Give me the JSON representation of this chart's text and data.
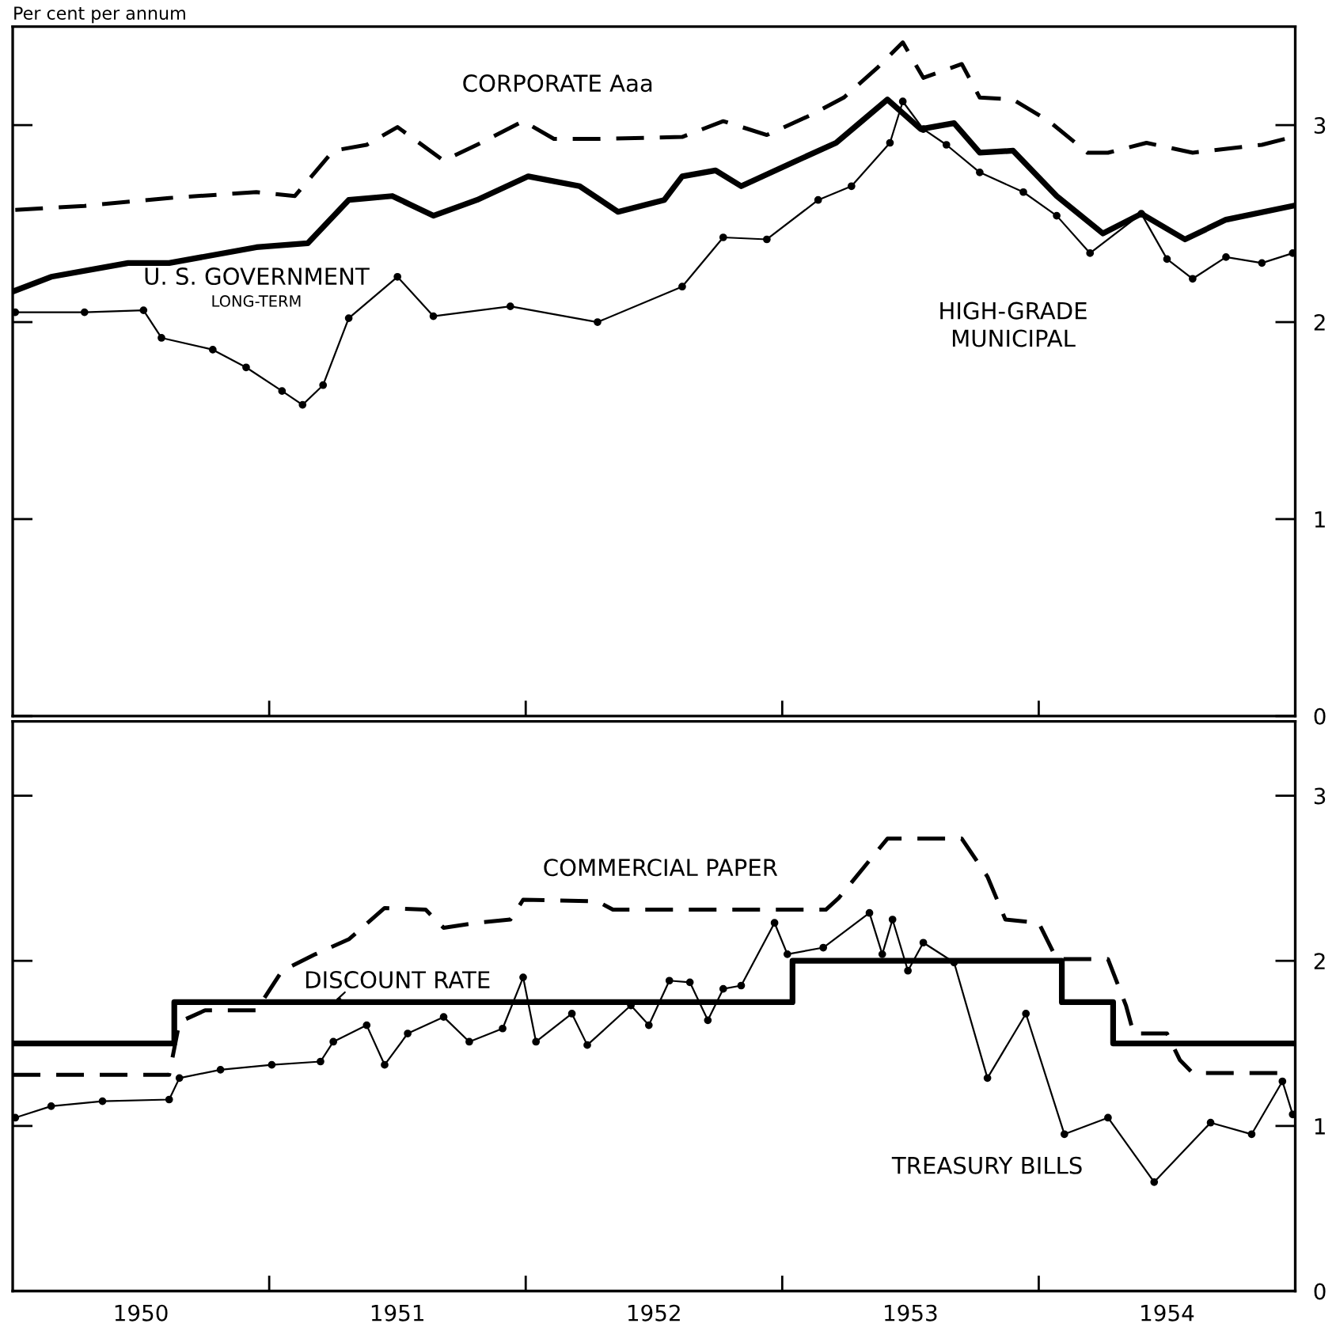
{
  "chart_data": [
    {
      "type": "line",
      "ylabel": "Per cent per annum",
      "xlim": [
        1950,
        1955
      ],
      "ylim": [
        0,
        3.5
      ],
      "yticks": [
        0,
        1,
        2,
        3
      ],
      "tick_labels": "y",
      "xticks": [
        {
          "value": 1951,
          "label": null
        },
        {
          "value": 1952,
          "label": null
        },
        {
          "value": 1953,
          "label": null
        },
        {
          "value": 1954,
          "label": null
        }
      ],
      "series": [
        {
          "name": "CORPORATE Aaa",
          "color": "#000000",
          "line_style": "dashed",
          "marker": "none",
          "x": [
            1950.01,
            1950.28,
            1950.61,
            1950.95,
            1951.1,
            1951.25,
            1951.38,
            1951.5,
            1951.68,
            1951.81,
            1951.99,
            1952.11,
            1952.28,
            1952.61,
            1952.77,
            1952.94,
            1953.11,
            1953.24,
            1953.37,
            1953.47,
            1953.55,
            1953.7,
            1953.77,
            1953.9,
            1954.04,
            1954.19,
            1954.27,
            1954.42,
            1954.6,
            1954.87,
            1954.99
          ],
          "values": [
            2.57,
            2.59,
            2.63,
            2.66,
            2.64,
            2.87,
            2.9,
            2.99,
            2.82,
            2.9,
            3.02,
            2.93,
            2.93,
            2.94,
            3.02,
            2.95,
            3.05,
            3.14,
            3.29,
            3.42,
            3.24,
            3.31,
            3.14,
            3.13,
            3.02,
            2.86,
            2.86,
            2.91,
            2.86,
            2.9,
            2.94
          ]
        },
        {
          "name": "U. S. GOVERNMENT\nLONG-TERM",
          "color": "#000000",
          "line_style": "solid",
          "marker": "none",
          "x": [
            1950.01,
            1950.15,
            1950.45,
            1950.61,
            1950.95,
            1951.15,
            1951.31,
            1951.48,
            1951.64,
            1951.81,
            1952.01,
            1952.21,
            1952.36,
            1952.54,
            1952.61,
            1952.74,
            1952.84,
            1953.04,
            1953.21,
            1953.31,
            1953.41,
            1953.54,
            1953.67,
            1953.77,
            1953.9,
            1954.07,
            1954.25,
            1954.4,
            1954.57,
            1954.73,
            1954.99
          ],
          "values": [
            2.16,
            2.23,
            2.3,
            2.3,
            2.38,
            2.4,
            2.62,
            2.64,
            2.54,
            2.62,
            2.74,
            2.69,
            2.56,
            2.62,
            2.74,
            2.77,
            2.69,
            2.81,
            2.91,
            3.02,
            3.13,
            2.98,
            3.01,
            2.86,
            2.87,
            2.64,
            2.45,
            2.55,
            2.42,
            2.52,
            2.59
          ]
        },
        {
          "name": "HIGH-GRADE\nMUNICIPAL",
          "color": "#000000",
          "line_style": "solid",
          "marker": "circle",
          "x": [
            1950.01,
            1950.28,
            1950.51,
            1950.58,
            1950.78,
            1950.91,
            1951.05,
            1951.13,
            1951.21,
            1951.31,
            1951.5,
            1951.64,
            1951.94,
            1952.28,
            1952.61,
            1952.77,
            1952.94,
            1953.14,
            1953.27,
            1953.42,
            1953.47,
            1953.55,
            1953.64,
            1953.77,
            1953.94,
            1954.07,
            1954.2,
            1954.4,
            1954.5,
            1954.6,
            1954.73,
            1954.87,
            1954.99
          ],
          "values": [
            2.05,
            2.05,
            2.06,
            1.92,
            1.86,
            1.77,
            1.65,
            1.58,
            1.68,
            2.02,
            2.23,
            2.03,
            2.08,
            2.0,
            2.18,
            2.43,
            2.42,
            2.62,
            2.69,
            2.91,
            3.12,
            2.98,
            2.9,
            2.76,
            2.66,
            2.54,
            2.35,
            2.55,
            2.32,
            2.22,
            2.33,
            2.3,
            2.35
          ]
        }
      ]
    },
    {
      "type": "line",
      "xlim": [
        1950,
        1955
      ],
      "ylim": [
        0,
        3.45
      ],
      "yticks": [
        0,
        1,
        2,
        3
      ],
      "xticks": [
        {
          "value": 1950.5,
          "label": "1950"
        },
        {
          "value": 1951,
          "label": null
        },
        {
          "value": 1951.5,
          "label": "1951"
        },
        {
          "value": 1952,
          "label": null
        },
        {
          "value": 1952.5,
          "label": "1952"
        },
        {
          "value": 1953,
          "label": null
        },
        {
          "value": 1953.5,
          "label": "1953"
        },
        {
          "value": 1954,
          "label": null
        },
        {
          "value": 1954.5,
          "label": "1954"
        }
      ],
      "series": [
        {
          "name": "COMMERCIAL PAPER",
          "color": "#000000",
          "line_style": "dashed",
          "marker": "none",
          "x": [
            1950.0,
            1950.61,
            1950.65,
            1950.75,
            1950.95,
            1951.05,
            1951.18,
            1951.31,
            1951.45,
            1951.61,
            1951.68,
            1951.81,
            1951.94,
            1951.99,
            1952.28,
            1952.34,
            1953.17,
            1953.22,
            1953.41,
            1953.7,
            1953.8,
            1953.87,
            1954.0,
            1954.07,
            1954.27,
            1954.34,
            1954.37,
            1954.5,
            1954.55,
            1954.6,
            1954.99
          ],
          "values": [
            1.31,
            1.31,
            1.63,
            1.7,
            1.7,
            1.94,
            2.04,
            2.13,
            2.32,
            2.31,
            2.2,
            2.23,
            2.25,
            2.37,
            2.36,
            2.31,
            2.31,
            2.38,
            2.74,
            2.74,
            2.51,
            2.25,
            2.23,
            2.01,
            2.01,
            1.73,
            1.56,
            1.56,
            1.4,
            1.32,
            1.32
          ]
        },
        {
          "name": "DISCOUNT RATE",
          "type": "step",
          "color": "#000000",
          "line_style": "solid",
          "marker": "none",
          "x": [
            1950.0,
            1950.63,
            1953.04,
            1954.09,
            1954.29,
            1955.0
          ],
          "values": [
            1.5,
            1.75,
            2.0,
            1.75,
            1.5,
            1.5
          ]
        },
        {
          "name": "TREASURY BILLS",
          "color": "#000000",
          "line_style": "solid",
          "marker": "circle",
          "x": [
            1950.01,
            1950.15,
            1950.35,
            1950.61,
            1950.65,
            1950.81,
            1951.01,
            1951.2,
            1951.25,
            1951.38,
            1951.45,
            1951.54,
            1951.68,
            1951.78,
            1951.91,
            1951.99,
            1952.04,
            1952.18,
            1952.24,
            1952.41,
            1952.48,
            1952.56,
            1952.64,
            1952.71,
            1952.77,
            1952.84,
            1952.97,
            1953.02,
            1953.16,
            1953.34,
            1953.39,
            1953.43,
            1953.49,
            1953.55,
            1953.67,
            1953.8,
            1953.95,
            1954.1,
            1954.27,
            1954.45,
            1954.67,
            1954.83,
            1954.95,
            1954.99
          ],
          "values": [
            1.05,
            1.12,
            1.15,
            1.16,
            1.29,
            1.34,
            1.37,
            1.39,
            1.51,
            1.61,
            1.37,
            1.56,
            1.66,
            1.51,
            1.59,
            1.9,
            1.51,
            1.68,
            1.49,
            1.73,
            1.61,
            1.88,
            1.87,
            1.64,
            1.83,
            1.85,
            2.23,
            2.04,
            2.08,
            2.29,
            2.04,
            2.25,
            1.94,
            2.11,
            1.99,
            1.29,
            1.68,
            0.95,
            1.05,
            0.66,
            1.02,
            0.95,
            1.27,
            1.07
          ]
        }
      ]
    }
  ]
}
